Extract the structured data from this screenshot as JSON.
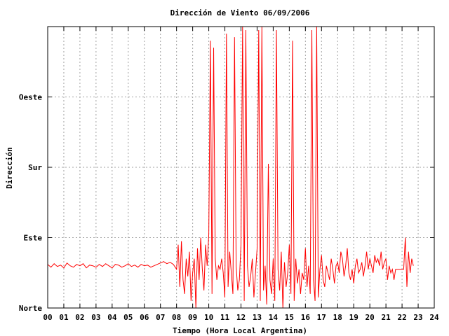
{
  "chart_data": {
    "type": "line",
    "title": "Dirección de Viento 06/09/2006",
    "xlabel": "Tiempo (Hora Local Argentina)",
    "ylabel": "Dirección",
    "xlim": [
      0,
      24
    ],
    "ylim": [
      0,
      4
    ],
    "x_tick_values": [
      0,
      1,
      2,
      3,
      4,
      5,
      6,
      7,
      8,
      9,
      10,
      11,
      12,
      13,
      14,
      15,
      16,
      17,
      18,
      19,
      20,
      21,
      22,
      23,
      24
    ],
    "x_tick_labels": [
      "00",
      "01",
      "02",
      "03",
      "04",
      "05",
      "06",
      "07",
      "08",
      "09",
      "10",
      "11",
      "12",
      "13",
      "14",
      "15",
      "16",
      "17",
      "18",
      "19",
      "20",
      "21",
      "22",
      "23",
      "24"
    ],
    "y_tick_values": [
      0,
      1,
      2,
      3
    ],
    "y_tick_labels": [
      "Norte",
      "Este",
      "Sur",
      "Oeste"
    ],
    "grid": true,
    "series_color": "#ff0000",
    "series": [
      {
        "x": [
          0.0,
          0.2,
          0.4,
          0.6,
          0.8,
          1.0,
          1.2,
          1.4,
          1.6,
          1.8,
          2.0,
          2.2,
          2.4,
          2.6,
          2.8,
          3.0,
          3.2,
          3.4,
          3.6,
          3.8,
          4.0,
          4.2,
          4.4,
          4.6,
          4.8,
          5.0,
          5.2,
          5.4,
          5.6,
          5.8,
          6.0,
          6.2,
          6.4,
          6.6,
          6.8,
          7.0,
          7.2,
          7.4,
          7.6,
          7.8,
          8.0,
          8.1,
          8.2,
          8.3,
          8.4,
          8.5,
          8.6,
          8.7,
          8.8,
          8.9,
          9.0,
          9.1,
          9.2,
          9.3,
          9.4,
          9.5,
          9.6,
          9.7,
          9.8,
          9.9,
          10.0,
          10.1,
          10.2,
          10.3,
          10.4,
          10.5,
          10.6,
          10.7,
          10.8,
          10.9,
          11.0,
          11.1,
          11.2,
          11.3,
          11.4,
          11.5,
          11.6,
          11.7,
          11.8,
          11.9,
          12.0,
          12.1,
          12.2,
          12.3,
          12.4,
          12.5,
          12.6,
          12.7,
          12.8,
          12.9,
          13.0,
          13.1,
          13.2,
          13.3,
          13.4,
          13.5,
          13.6,
          13.7,
          13.8,
          13.9,
          14.0,
          14.1,
          14.2,
          14.3,
          14.4,
          14.5,
          14.6,
          14.7,
          14.8,
          14.9,
          15.0,
          15.1,
          15.2,
          15.3,
          15.4,
          15.5,
          15.6,
          15.7,
          15.8,
          15.9,
          16.0,
          16.1,
          16.2,
          16.3,
          16.4,
          16.5,
          16.6,
          16.7,
          16.8,
          16.9,
          17.0,
          17.1,
          17.2,
          17.3,
          17.4,
          17.5,
          17.6,
          17.7,
          17.8,
          17.9,
          18.0,
          18.1,
          18.2,
          18.3,
          18.4,
          18.5,
          18.6,
          18.7,
          18.8,
          18.9,
          19.0,
          19.1,
          19.2,
          19.3,
          19.4,
          19.5,
          19.6,
          19.7,
          19.8,
          19.9,
          20.0,
          20.1,
          20.2,
          20.3,
          20.4,
          20.5,
          20.6,
          20.7,
          20.8,
          20.9,
          21.0,
          21.1,
          21.2,
          21.3,
          21.4,
          21.5,
          21.6,
          21.7,
          21.8,
          21.9,
          22.0,
          22.1,
          22.2,
          22.3,
          22.4,
          22.5,
          22.6,
          22.7
        ],
        "y": [
          0.62,
          0.58,
          0.63,
          0.59,
          0.61,
          0.57,
          0.64,
          0.6,
          0.58,
          0.62,
          0.6,
          0.63,
          0.57,
          0.61,
          0.6,
          0.58,
          0.62,
          0.59,
          0.63,
          0.6,
          0.57,
          0.62,
          0.61,
          0.58,
          0.6,
          0.63,
          0.59,
          0.61,
          0.58,
          0.62,
          0.6,
          0.61,
          0.58,
          0.6,
          0.62,
          0.64,
          0.66,
          0.63,
          0.65,
          0.62,
          0.55,
          0.9,
          0.3,
          0.95,
          0.4,
          0.2,
          0.7,
          0.45,
          0.8,
          0.1,
          0.5,
          0.7,
          0.0,
          0.85,
          0.4,
          1.0,
          0.55,
          0.25,
          0.9,
          0.6,
          1.05,
          3.8,
          0.2,
          3.7,
          0.7,
          0.4,
          0.6,
          0.55,
          0.7,
          0.5,
          0.15,
          3.9,
          0.3,
          0.8,
          0.5,
          0.2,
          3.85,
          0.6,
          0.25,
          0.4,
          0.9,
          4.0,
          0.1,
          3.95,
          0.6,
          0.3,
          0.45,
          0.7,
          0.15,
          0.5,
          0.85,
          3.95,
          0.1,
          4.0,
          0.25,
          0.6,
          0.05,
          2.05,
          0.4,
          0.2,
          0.7,
          0.1,
          3.95,
          0.55,
          0.25,
          0.8,
          0.0,
          0.65,
          0.3,
          0.5,
          0.9,
          0.2,
          3.8,
          0.1,
          0.7,
          0.35,
          0.55,
          0.2,
          0.5,
          0.4,
          0.85,
          0.3,
          0.6,
          0.2,
          3.95,
          0.4,
          0.1,
          4.0,
          0.15,
          0.55,
          0.75,
          0.4,
          0.3,
          0.6,
          0.5,
          0.4,
          0.7,
          0.55,
          0.35,
          0.6,
          0.65,
          0.5,
          0.8,
          0.7,
          0.45,
          0.6,
          0.85,
          0.5,
          0.4,
          0.55,
          0.35,
          0.6,
          0.7,
          0.5,
          0.55,
          0.65,
          0.45,
          0.6,
          0.8,
          0.55,
          0.7,
          0.6,
          0.5,
          0.75,
          0.65,
          0.7,
          0.6,
          0.8,
          0.55,
          0.65,
          0.7,
          0.4,
          0.6,
          0.5,
          0.55,
          0.4,
          0.55,
          0.55,
          0.55,
          0.55,
          0.55,
          0.55,
          1.0,
          0.3,
          0.8,
          0.5,
          0.7,
          0.6
        ]
      }
    ]
  }
}
